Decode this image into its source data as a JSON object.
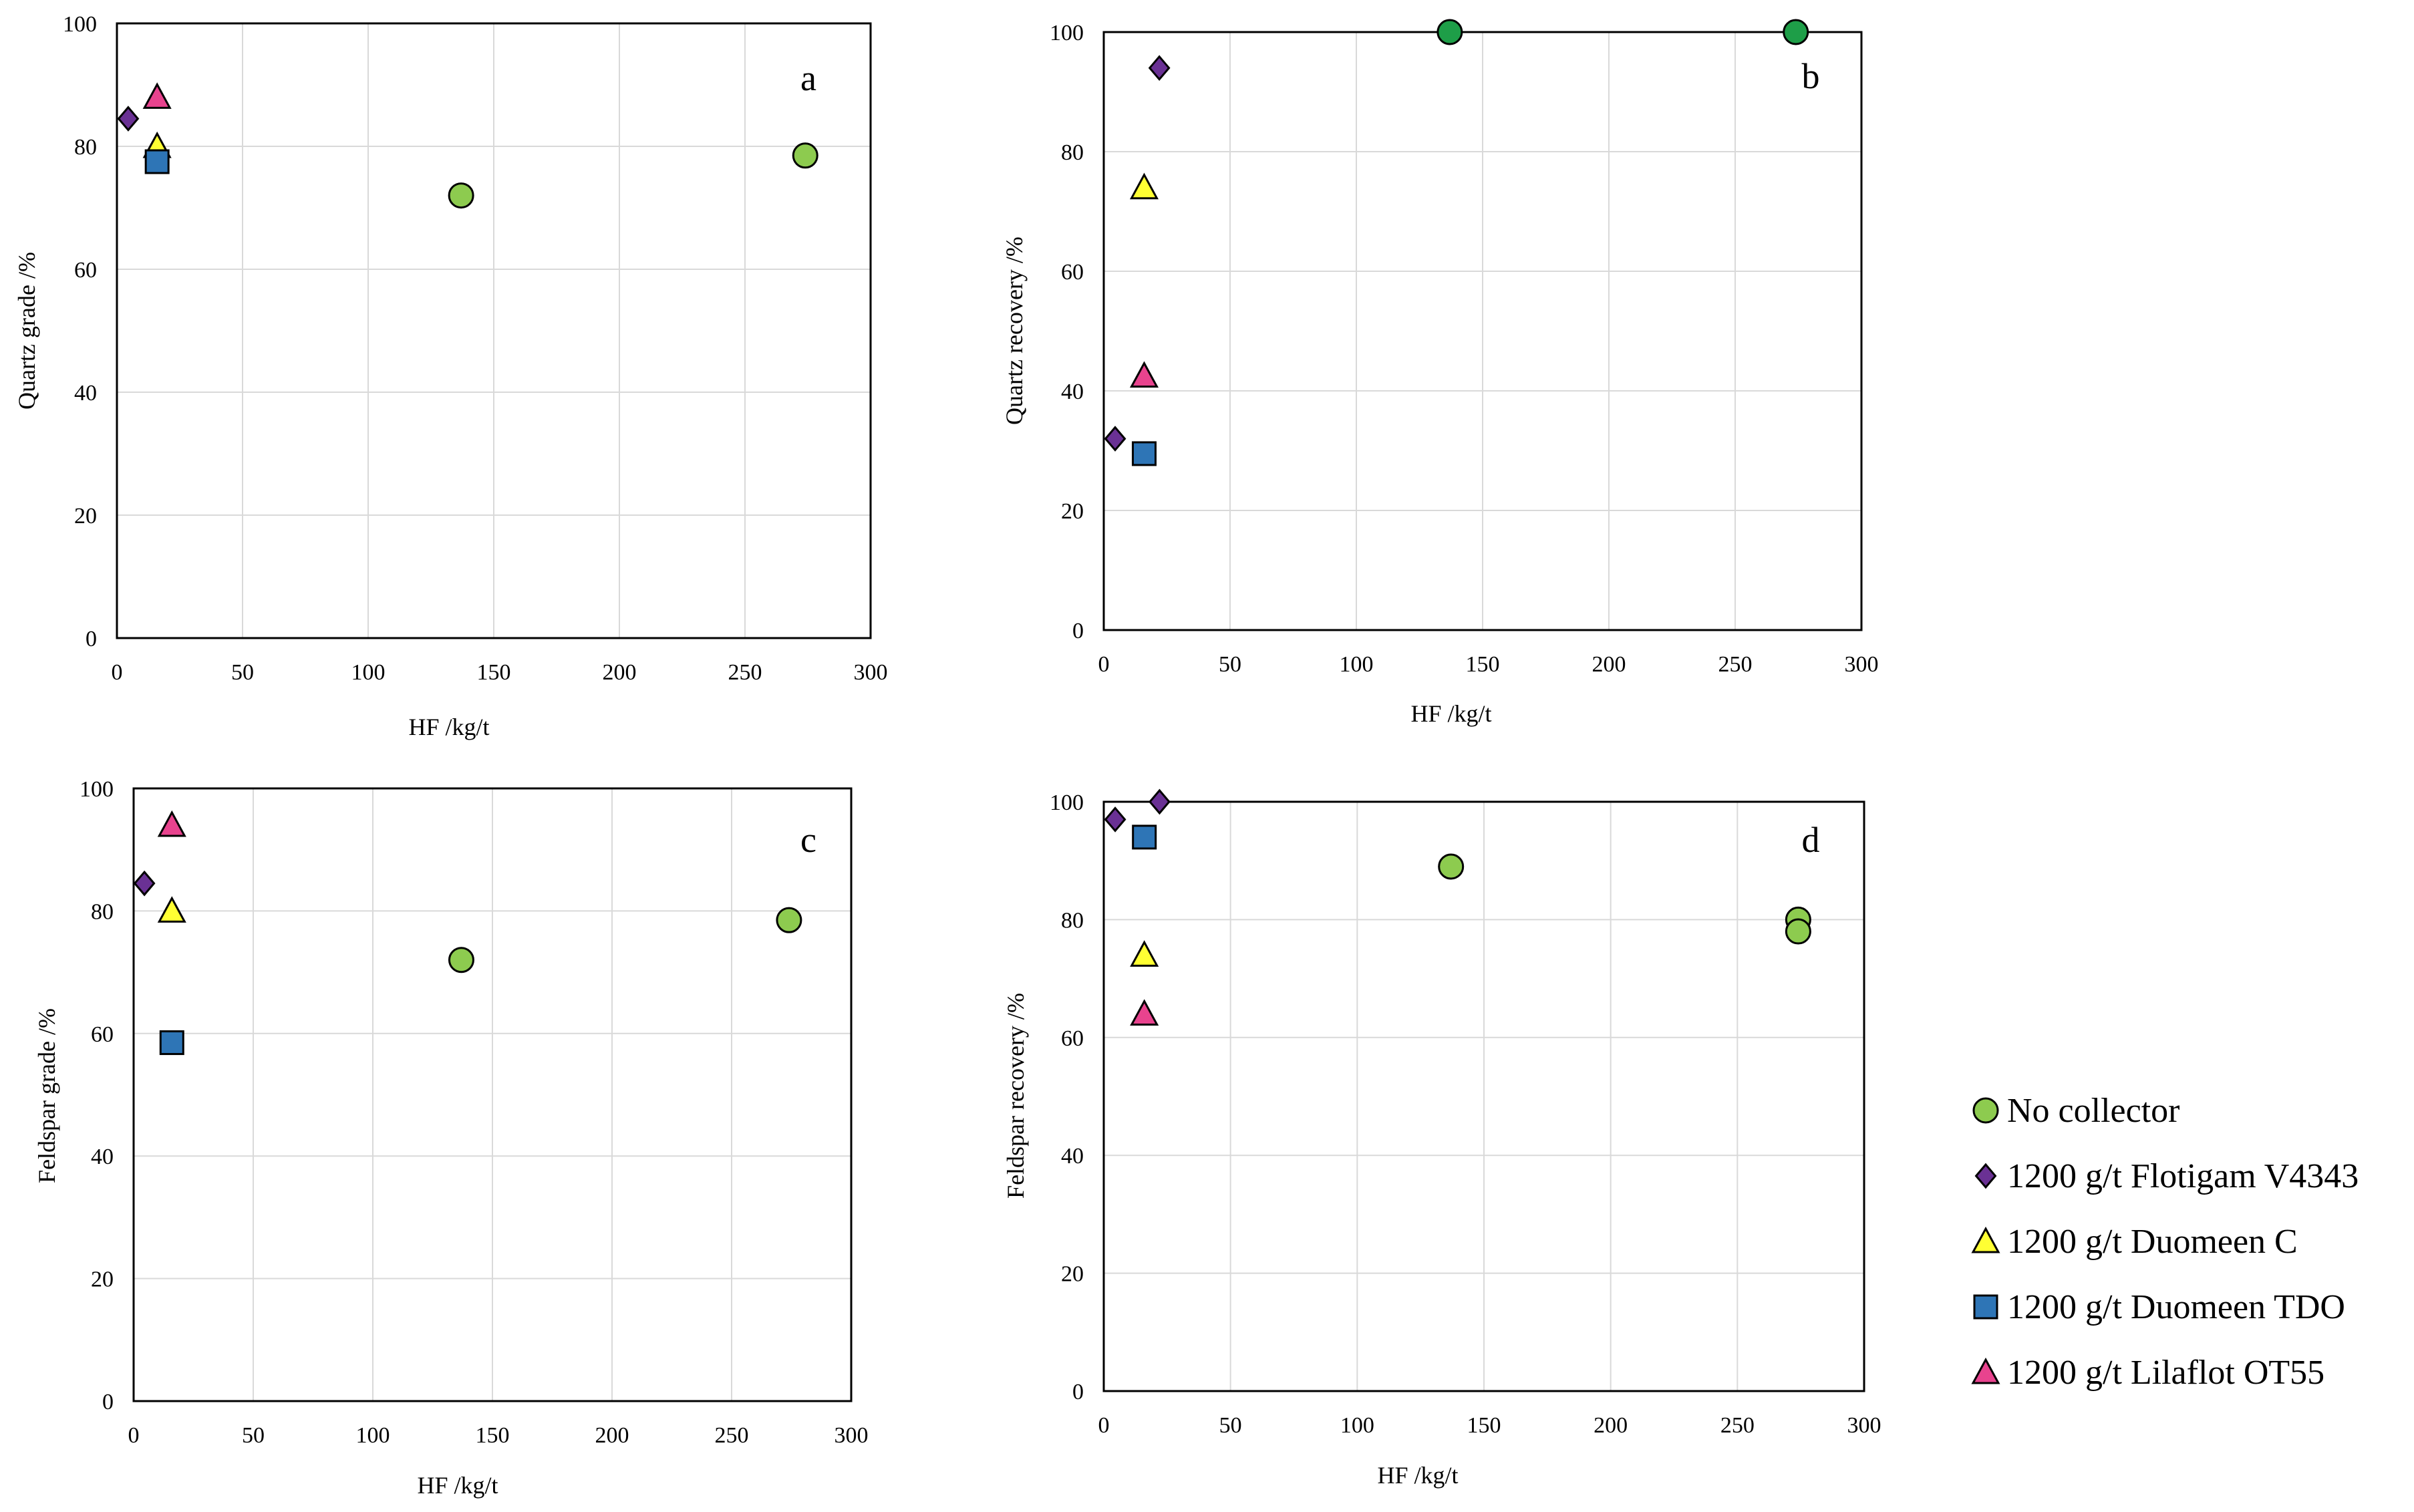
{
  "colors": {
    "no_collector": "#8DCB4F",
    "no_collector_dark": "#1E9E48",
    "flotigam": "#6A3194",
    "duomeen_c": "#FFFF33",
    "duomeen_tdo": "#2E75B6",
    "lilaflot": "#E8438E"
  },
  "legend": [
    {
      "label": "No collector",
      "marker": "circle",
      "color": "#8DCB4F"
    },
    {
      "label": "1200 g/t Flotigam V4343",
      "marker": "diamond",
      "color": "#6A3194"
    },
    {
      "label": "1200 g/t Duomeen C",
      "marker": "triangle",
      "color": "#FFFF33"
    },
    {
      "label": "1200 g/t Duomeen TDO",
      "marker": "square",
      "color": "#2E75B6"
    },
    {
      "label": "1200 g/t Lilaflot OT55",
      "marker": "triangle",
      "color": "#E8438E"
    }
  ],
  "chart_data": [
    {
      "type": "scatter",
      "panel": "a",
      "xlabel": "HF /kg/t",
      "ylabel": "Quartz grade /%",
      "xlim": [
        0,
        300
      ],
      "ylim": [
        0,
        100
      ],
      "xticks": [
        "0",
        "50",
        "100",
        "150",
        "200",
        "250",
        "300"
      ],
      "yticks": [
        "0",
        "20",
        "40",
        "60",
        "80",
        "100"
      ],
      "series": [
        {
          "name": "No collector",
          "marker": "circle",
          "color": "#8DCB4F",
          "points": [
            [
              137,
              72
            ],
            [
              274,
              78.5
            ]
          ]
        },
        {
          "name": "1200 g/t Flotigam V4343",
          "marker": "diamond",
          "color": "#6A3194",
          "points": [
            [
              4.5,
              84.5
            ]
          ]
        },
        {
          "name": "1200 g/t Duomeen C",
          "marker": "triangle",
          "color": "#FFFF33",
          "points": [
            [
              16,
              80
            ]
          ]
        },
        {
          "name": "1200 g/t Duomeen TDO",
          "marker": "square",
          "color": "#2E75B6",
          "points": [
            [
              16,
              77.5
            ]
          ]
        },
        {
          "name": "1200 g/t Lilaflot OT55",
          "marker": "triangle",
          "color": "#E8438E",
          "points": [
            [
              16,
              88
            ]
          ]
        }
      ]
    },
    {
      "type": "scatter",
      "panel": "b",
      "xlabel": "HF /kg/t",
      "ylabel": "Quartz recovery /%",
      "xlim": [
        0,
        300
      ],
      "ylim": [
        0,
        100
      ],
      "xticks": [
        "0",
        "50",
        "100",
        "150",
        "200",
        "250",
        "300"
      ],
      "yticks": [
        "0",
        "20",
        "40",
        "60",
        "80",
        "100"
      ],
      "series": [
        {
          "name": "No collector",
          "marker": "circle",
          "color": "#1E9E48",
          "points": [
            [
              137,
              100
            ],
            [
              274,
              100
            ]
          ]
        },
        {
          "name": "1200 g/t Flotigam V4343",
          "marker": "diamond",
          "color": "#6A3194",
          "points": [
            [
              4.5,
              32
            ],
            [
              22,
              94
            ]
          ]
        },
        {
          "name": "1200 g/t Duomeen C",
          "marker": "triangle",
          "color": "#FFFF33",
          "points": [
            [
              16,
              74
            ]
          ]
        },
        {
          "name": "1200 g/t Duomeen TDO",
          "marker": "square",
          "color": "#2E75B6",
          "points": [
            [
              16,
              29.5
            ]
          ]
        },
        {
          "name": "1200 g/t Lilaflot OT55",
          "marker": "triangle",
          "color": "#E8438E",
          "points": [
            [
              16,
              42.5
            ]
          ]
        }
      ]
    },
    {
      "type": "scatter",
      "panel": "c",
      "xlabel": "HF /kg/t",
      "ylabel": "Feldspar grade /%",
      "xlim": [
        0,
        300
      ],
      "ylim": [
        0,
        100
      ],
      "xticks": [
        "0",
        "50",
        "100",
        "150",
        "200",
        "250",
        "300"
      ],
      "yticks": [
        "0",
        "20",
        "40",
        "60",
        "80",
        "100"
      ],
      "series": [
        {
          "name": "No collector",
          "marker": "circle",
          "color": "#8DCB4F",
          "points": [
            [
              137,
              72
            ],
            [
              274,
              78.5
            ]
          ]
        },
        {
          "name": "1200 g/t Flotigam V4343",
          "marker": "diamond",
          "color": "#6A3194",
          "points": [
            [
              4.5,
              84.5
            ]
          ]
        },
        {
          "name": "1200 g/t Duomeen C",
          "marker": "triangle",
          "color": "#FFFF33",
          "points": [
            [
              16,
              80
            ]
          ]
        },
        {
          "name": "1200 g/t Duomeen TDO",
          "marker": "square",
          "color": "#2E75B6",
          "points": [
            [
              16,
              58.5
            ]
          ]
        },
        {
          "name": "1200 g/t Lilaflot OT55",
          "marker": "triangle",
          "color": "#E8438E",
          "points": [
            [
              16,
              94
            ]
          ]
        }
      ]
    },
    {
      "type": "scatter",
      "panel": "d",
      "xlabel": "HF /kg/t",
      "ylabel": "Feldspar recovery /%",
      "xlim": [
        0,
        300
      ],
      "ylim": [
        0,
        100
      ],
      "xticks": [
        "0",
        "50",
        "100",
        "150",
        "200",
        "250",
        "300"
      ],
      "yticks": [
        "0",
        "20",
        "40",
        "60",
        "80",
        "100"
      ],
      "series": [
        {
          "name": "No collector",
          "marker": "circle",
          "color": "#8DCB4F",
          "points": [
            [
              137,
              89
            ],
            [
              274,
              80
            ],
            [
              274,
              78
            ]
          ]
        },
        {
          "name": "1200 g/t Flotigam V4343",
          "marker": "diamond",
          "color": "#6A3194",
          "points": [
            [
              4.5,
              97
            ],
            [
              22,
              100
            ]
          ]
        },
        {
          "name": "1200 g/t Duomeen C",
          "marker": "triangle",
          "color": "#FFFF33",
          "points": [
            [
              16,
              74
            ]
          ]
        },
        {
          "name": "1200 g/t Duomeen TDO",
          "marker": "square",
          "color": "#2E75B6",
          "points": [
            [
              16,
              94
            ]
          ]
        },
        {
          "name": "1200 g/t Lilaflot OT55",
          "marker": "triangle",
          "color": "#E8438E",
          "points": [
            [
              16,
              64
            ]
          ]
        }
      ]
    }
  ]
}
